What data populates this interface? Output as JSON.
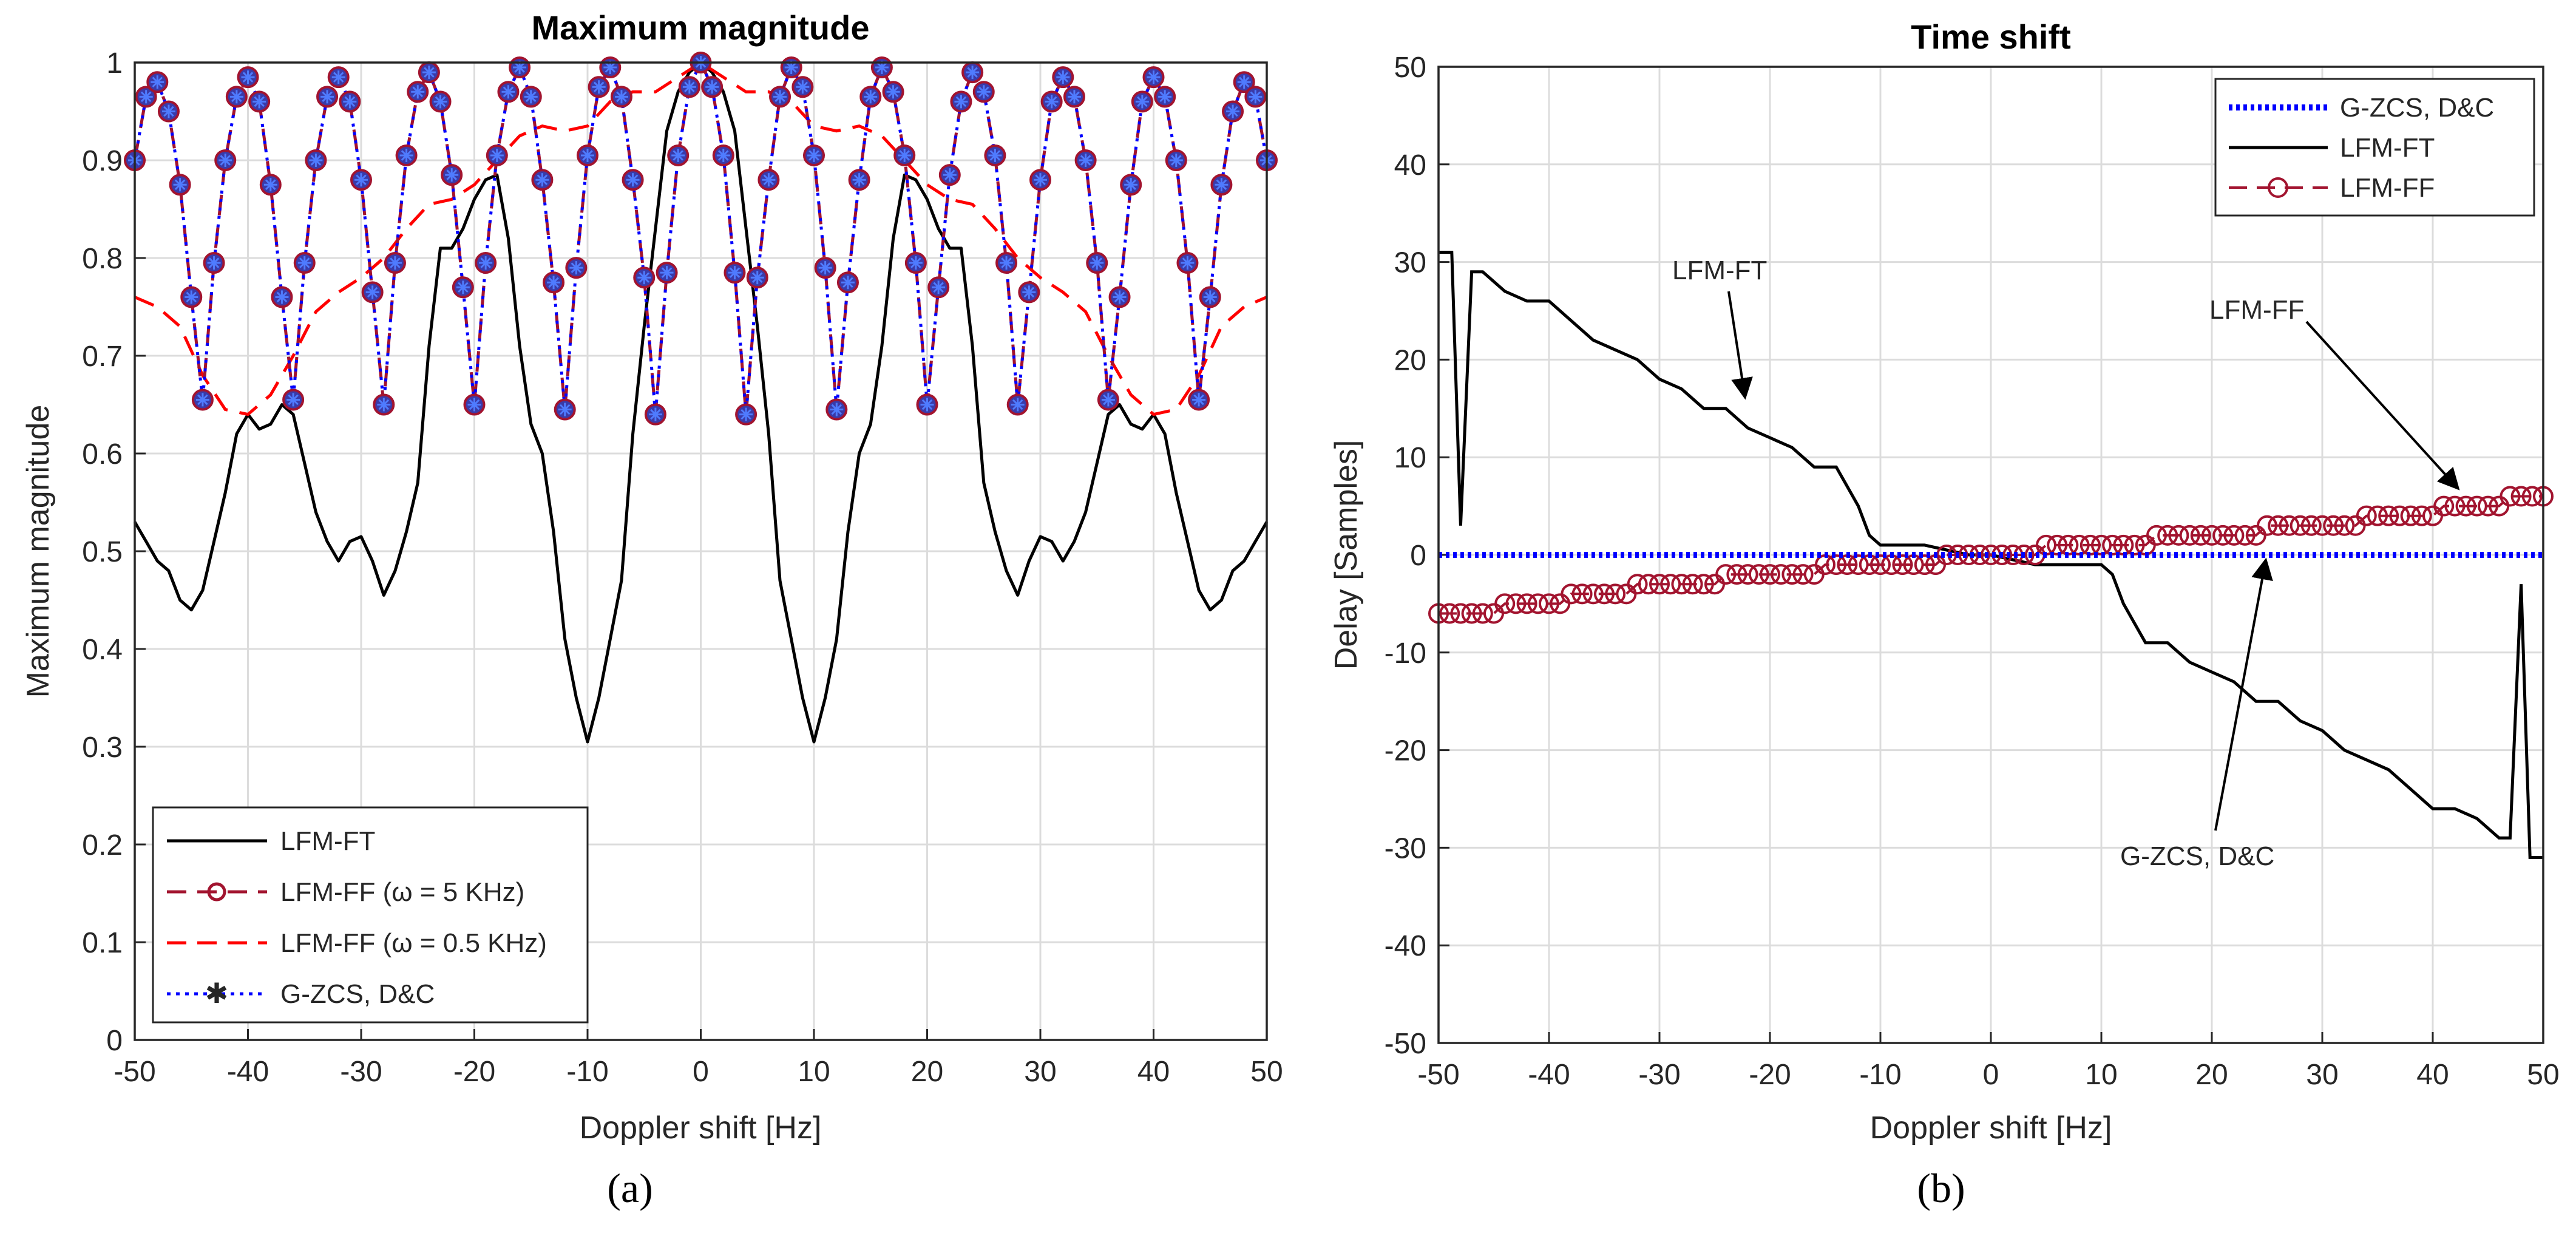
{
  "chart_data": [
    {
      "type": "line",
      "panel_label": "(a)",
      "title": "Maximum magnitude",
      "xlabel": "Doppler shift [Hz]",
      "ylabel": "Maximum magnitude",
      "xlim": [
        -50,
        50
      ],
      "ylim": [
        0,
        1
      ],
      "xticks": [
        "-50",
        "-40",
        "-30",
        "-20",
        "-10",
        "0",
        "10",
        "20",
        "30",
        "40",
        "50"
      ],
      "yticks": [
        "0",
        "0.1",
        "0.2",
        "0.3",
        "0.4",
        "0.5",
        "0.6",
        "0.7",
        "0.8",
        "0.9",
        "1"
      ],
      "grid": true,
      "legend_position": "bottom-left",
      "series": [
        {
          "name": "LFM-FT",
          "color": "#000000",
          "style": "solid",
          "x": [
            -50,
            -49,
            -48,
            -47,
            -46,
            -45,
            -44,
            -43,
            -42,
            -41,
            -40,
            -39,
            -38,
            -37,
            -36,
            -35,
            -34,
            -33,
            -32,
            -31,
            -30,
            -29,
            -28,
            -27,
            -26,
            -25,
            -24,
            -23,
            -22,
            -21,
            -20,
            -19,
            -18,
            -17,
            -16,
            -15,
            -14,
            -13,
            -12,
            -11,
            -10,
            -9,
            -8,
            -7,
            -6,
            -5,
            -4,
            -3,
            -2,
            -1,
            0,
            1,
            2,
            3,
            4,
            5,
            6,
            7,
            8,
            9,
            10,
            11,
            12,
            13,
            14,
            15,
            16,
            17,
            18,
            19,
            20,
            21,
            22,
            23,
            24,
            25,
            26,
            27,
            28,
            29,
            30,
            31,
            32,
            33,
            34,
            35,
            36,
            37,
            38,
            39,
            40,
            41,
            42,
            43,
            44,
            45,
            46,
            47,
            48,
            49,
            50
          ],
          "y": [
            0.53,
            0.51,
            0.49,
            0.48,
            0.45,
            0.44,
            0.46,
            0.51,
            0.56,
            0.62,
            0.64,
            0.625,
            0.63,
            0.65,
            0.64,
            0.59,
            0.54,
            0.51,
            0.49,
            0.51,
            0.515,
            0.49,
            0.455,
            0.48,
            0.52,
            0.57,
            0.71,
            0.81,
            0.81,
            0.83,
            0.86,
            0.88,
            0.885,
            0.82,
            0.71,
            0.63,
            0.6,
            0.52,
            0.41,
            0.35,
            0.305,
            0.35,
            0.41,
            0.47,
            0.62,
            0.73,
            0.83,
            0.93,
            0.97,
            0.99,
            1.0,
            0.99,
            0.97,
            0.93,
            0.83,
            0.73,
            0.62,
            0.47,
            0.41,
            0.35,
            0.305,
            0.35,
            0.41,
            0.52,
            0.6,
            0.63,
            0.71,
            0.82,
            0.885,
            0.88,
            0.86,
            0.83,
            0.81,
            0.81,
            0.71,
            0.57,
            0.52,
            0.48,
            0.455,
            0.49,
            0.515,
            0.51,
            0.49,
            0.51,
            0.54,
            0.59,
            0.64,
            0.65,
            0.63,
            0.625,
            0.64,
            0.62,
            0.56,
            0.51,
            0.46,
            0.44,
            0.45,
            0.48,
            0.49,
            0.51,
            0.53
          ]
        },
        {
          "name": "LFM-FF  (ω = 5 KHz)",
          "color": "#a2142f",
          "style": "dashed-circle",
          "x": [
            -50,
            -49,
            -48,
            -47,
            -46,
            -45,
            -44,
            -43,
            -42,
            -41,
            -40,
            -39,
            -38,
            -37,
            -36,
            -35,
            -34,
            -33,
            -32,
            -31,
            -30,
            -29,
            -28,
            -27,
            -26,
            -25,
            -24,
            -23,
            -22,
            -21,
            -20,
            -19,
            -18,
            -17,
            -16,
            -15,
            -14,
            -13,
            -12,
            -11,
            -10,
            -9,
            -8,
            -7,
            -6,
            -5,
            -4,
            -3,
            -2,
            -1,
            0,
            1,
            2,
            3,
            4,
            5,
            6,
            7,
            8,
            9,
            10,
            11,
            12,
            13,
            14,
            15,
            16,
            17,
            18,
            19,
            20,
            21,
            22,
            23,
            24,
            25,
            26,
            27,
            28,
            29,
            30,
            31,
            32,
            33,
            34,
            35,
            36,
            37,
            38,
            39,
            40,
            41,
            42,
            43,
            44,
            45,
            46,
            47,
            48,
            49,
            50
          ],
          "y": [
            0.9,
            0.965,
            0.98,
            0.95,
            0.875,
            0.76,
            0.655,
            0.795,
            0.9,
            0.965,
            0.985,
            0.96,
            0.875,
            0.76,
            0.655,
            0.795,
            0.9,
            0.965,
            0.985,
            0.96,
            0.88,
            0.765,
            0.65,
            0.795,
            0.905,
            0.97,
            0.99,
            0.96,
            0.885,
            0.77,
            0.65,
            0.795,
            0.905,
            0.97,
            0.995,
            0.965,
            0.88,
            0.775,
            0.645,
            0.79,
            0.905,
            0.975,
            0.995,
            0.965,
            0.88,
            0.78,
            0.64,
            0.785,
            0.905,
            0.975,
            1.0,
            0.975,
            0.905,
            0.785,
            0.64,
            0.78,
            0.88,
            0.965,
            0.995,
            0.975,
            0.905,
            0.79,
            0.645,
            0.775,
            0.88,
            0.965,
            0.995,
            0.97,
            0.905,
            0.795,
            0.65,
            0.77,
            0.885,
            0.96,
            0.99,
            0.97,
            0.905,
            0.795,
            0.65,
            0.765,
            0.88,
            0.96,
            0.985,
            0.965,
            0.9,
            0.795,
            0.655,
            0.76,
            0.875,
            0.96,
            0.985,
            0.965,
            0.9,
            0.795,
            0.655,
            0.76,
            0.875,
            0.95,
            0.98,
            0.965,
            0.9
          ]
        },
        {
          "name": "LFM-FF (ω = 0.5 KHz)",
          "color": "#ff0000",
          "style": "dashed",
          "x": [
            -50,
            -48,
            -46,
            -44,
            -42,
            -40,
            -38,
            -36,
            -34,
            -32,
            -30,
            -28,
            -26,
            -24,
            -22,
            -20,
            -18,
            -16,
            -14,
            -12,
            -10,
            -8,
            -6,
            -4,
            -2,
            0,
            2,
            4,
            6,
            8,
            10,
            12,
            14,
            16,
            18,
            20,
            22,
            24,
            26,
            28,
            30,
            32,
            34,
            36,
            38,
            40,
            42,
            44,
            46,
            48,
            50
          ],
          "y": [
            0.76,
            0.75,
            0.73,
            0.68,
            0.645,
            0.64,
            0.66,
            0.7,
            0.745,
            0.765,
            0.78,
            0.8,
            0.83,
            0.855,
            0.86,
            0.875,
            0.9,
            0.925,
            0.935,
            0.93,
            0.935,
            0.96,
            0.97,
            0.97,
            0.985,
            1.0,
            0.985,
            0.97,
            0.97,
            0.96,
            0.935,
            0.93,
            0.935,
            0.925,
            0.9,
            0.875,
            0.86,
            0.855,
            0.83,
            0.8,
            0.78,
            0.765,
            0.745,
            0.7,
            0.66,
            0.64,
            0.645,
            0.68,
            0.73,
            0.75,
            0.76
          ]
        },
        {
          "name": "G-ZCS, D&C",
          "color": "#0000ff",
          "style": "dotted-star",
          "same_as": "LFM-FF  (ω = 5 KHz)"
        }
      ]
    },
    {
      "type": "line",
      "panel_label": "(b)",
      "title": "Time shift",
      "xlabel": "Doppler shift [Hz]",
      "ylabel": "Delay [Samples]",
      "xlim": [
        -50,
        50
      ],
      "ylim": [
        -50,
        50
      ],
      "xticks": [
        "-50",
        "-40",
        "-30",
        "-20",
        "-10",
        "0",
        "10",
        "20",
        "30",
        "40",
        "50"
      ],
      "yticks": [
        "-50",
        "-40",
        "-30",
        "-20",
        "-10",
        "0",
        "10",
        "20",
        "30",
        "40",
        "50"
      ],
      "grid": true,
      "legend_position": "top-right",
      "series": [
        {
          "name": "G-ZCS, D&C",
          "color": "#0000ff",
          "style": "dotted",
          "x": [
            -50,
            50
          ],
          "y": [
            0,
            0
          ]
        },
        {
          "name": "LFM-FT",
          "color": "#000000",
          "style": "solid",
          "x": [
            -50,
            -48.8,
            -48,
            -47,
            -46,
            -44,
            -42,
            -40,
            -39,
            -38,
            -36,
            -34,
            -32,
            -30,
            -28,
            -26,
            -24,
            -22,
            -20,
            -18,
            -16,
            -14,
            -13,
            -12,
            -11,
            -10,
            -8,
            -6,
            -4,
            -2,
            0,
            2,
            4,
            6,
            8,
            10,
            11,
            12,
            13,
            14,
            16,
            18,
            20,
            22,
            24,
            26,
            28,
            30,
            32,
            34,
            36,
            38,
            39,
            40,
            42,
            44,
            46,
            47,
            48,
            48.8,
            50
          ],
          "y": [
            31,
            31,
            3,
            29,
            29,
            27,
            26,
            26,
            25,
            24,
            22,
            21,
            20,
            18,
            17,
            15,
            15,
            13,
            12,
            11,
            9,
            9,
            7,
            5,
            2,
            1,
            1,
            1,
            0.5,
            0,
            0,
            -0.5,
            -1,
            -1,
            -1,
            -1,
            -2,
            -5,
            -7,
            -9,
            -9,
            -11,
            -12,
            -13,
            -15,
            -15,
            -17,
            -18,
            -20,
            -21,
            -22,
            -24,
            -25,
            -26,
            -26,
            -27,
            -29,
            -29,
            -3,
            -31,
            -31
          ]
        },
        {
          "name": "LFM-FF",
          "color": "#a2142f",
          "style": "dashed-circle",
          "x": [
            -50,
            -49,
            -48,
            -47,
            -46,
            -45,
            -44,
            -43,
            -42,
            -41,
            -40,
            -39,
            -38,
            -37,
            -36,
            -35,
            -34,
            -33,
            -32,
            -31,
            -30,
            -29,
            -28,
            -27,
            -26,
            -25,
            -24,
            -23,
            -22,
            -21,
            -20,
            -19,
            -18,
            -17,
            -16,
            -15,
            -14,
            -13,
            -12,
            -11,
            -10,
            -9,
            -8,
            -7,
            -6,
            -5,
            -4,
            -3,
            -2,
            -1,
            0,
            1,
            2,
            3,
            4,
            5,
            6,
            7,
            8,
            9,
            10,
            11,
            12,
            13,
            14,
            15,
            16,
            17,
            18,
            19,
            20,
            21,
            22,
            23,
            24,
            25,
            26,
            27,
            28,
            29,
            30,
            31,
            32,
            33,
            34,
            35,
            36,
            37,
            38,
            39,
            40,
            41,
            42,
            43,
            44,
            45,
            46,
            47,
            48,
            49,
            50
          ],
          "y": [
            -6,
            -6,
            -6,
            -6,
            -6,
            -6,
            -5,
            -5,
            -5,
            -5,
            -5,
            -5,
            -4,
            -4,
            -4,
            -4,
            -4,
            -4,
            -3,
            -3,
            -3,
            -3,
            -3,
            -3,
            -3,
            -3,
            -2,
            -2,
            -2,
            -2,
            -2,
            -2,
            -2,
            -2,
            -2,
            -1,
            -1,
            -1,
            -1,
            -1,
            -1,
            -1,
            -1,
            -1,
            -1,
            -1,
            0,
            0,
            0,
            0,
            0,
            0,
            0,
            0,
            0,
            1,
            1,
            1,
            1,
            1,
            1,
            1,
            1,
            1,
            1,
            2,
            2,
            2,
            2,
            2,
            2,
            2,
            2,
            2,
            2,
            3,
            3,
            3,
            3,
            3,
            3,
            3,
            3,
            3,
            4,
            4,
            4,
            4,
            4,
            4,
            4,
            5,
            5,
            5,
            5,
            5,
            5,
            6,
            6,
            6,
            6
          ]
        }
      ],
      "annotations": [
        {
          "text": "LFM-FT"
        },
        {
          "text": "LFM-FF"
        },
        {
          "text": "G-ZCS, D&C"
        }
      ]
    }
  ]
}
